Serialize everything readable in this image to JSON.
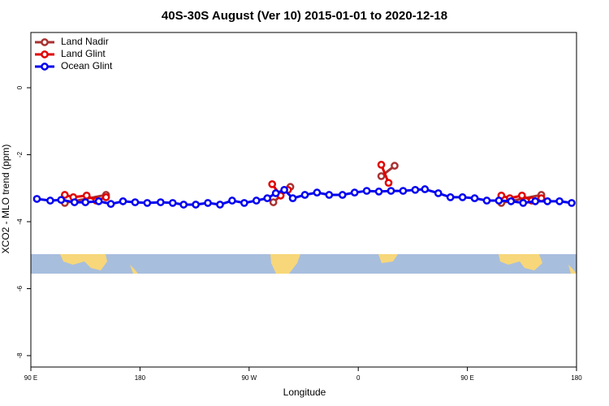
{
  "chart_data": {
    "type": "line",
    "title": "40S-30S August (Ver 10)   2015-01-01 to 2020-12-18",
    "x_label": "Longitude",
    "y_label": "XCO2 - MLO trend (ppm)",
    "xlim": [
      90,
      540
    ],
    "xticks": [
      {
        "value": 90,
        "label": "90 E"
      },
      {
        "value": 180,
        "label": "180"
      },
      {
        "value": 270,
        "label": "90 W"
      },
      {
        "value": 360,
        "label": "0"
      },
      {
        "value": 450,
        "label": "90 E"
      },
      {
        "value": 540,
        "label": "180"
      }
    ],
    "ylim": [
      -8.34,
      1.65
    ],
    "yticks": [
      0,
      -2,
      -4,
      -6,
      -8
    ],
    "legend": "top-left",
    "series": [
      {
        "name": "Land Nadir",
        "color": "#a83232",
        "x": [
          118,
          152,
          null,
          290,
          304,
          null,
          379,
          390,
          null,
          478,
          511
        ],
        "values": [
          -3.44,
          -3.2,
          null,
          -3.42,
          -2.96,
          null,
          -2.64,
          -2.33,
          null,
          -3.44,
          -3.2
        ]
      },
      {
        "name": "Land Glint",
        "color": "#e00000",
        "x": [
          118,
          125,
          136,
          144,
          152,
          null,
          289,
          296,
          302,
          null,
          379,
          385,
          null,
          478,
          485,
          495,
          503,
          511
        ],
        "values": [
          -3.2,
          -3.27,
          -3.22,
          -3.37,
          -3.27,
          null,
          -2.88,
          -3.22,
          -3.05,
          null,
          -2.3,
          -2.84,
          null,
          -3.22,
          -3.3,
          -3.22,
          -3.37,
          -3.3
        ]
      },
      {
        "name": "Ocean Glint",
        "color": "#0000ee",
        "x": [
          95,
          106,
          115,
          126,
          135,
          146,
          156,
          166,
          176,
          186,
          197,
          207,
          216,
          226,
          236,
          246,
          256,
          266,
          276,
          285,
          292,
          299,
          306,
          316,
          326,
          336,
          347,
          357,
          367,
          377,
          387,
          397,
          407,
          415,
          426,
          436,
          446,
          456,
          466,
          476,
          486,
          496,
          506,
          516,
          526,
          536
        ],
        "values": [
          -3.32,
          -3.37,
          -3.35,
          -3.42,
          -3.42,
          -3.39,
          -3.47,
          -3.39,
          -3.42,
          -3.44,
          -3.42,
          -3.44,
          -3.49,
          -3.49,
          -3.44,
          -3.49,
          -3.37,
          -3.44,
          -3.37,
          -3.3,
          -3.15,
          -3.05,
          -3.3,
          -3.2,
          -3.13,
          -3.2,
          -3.2,
          -3.13,
          -3.08,
          -3.1,
          -3.08,
          -3.08,
          -3.05,
          -3.03,
          -3.15,
          -3.27,
          -3.27,
          -3.3,
          -3.37,
          -3.37,
          -3.39,
          -3.44,
          -3.39,
          -3.39,
          -3.39,
          -3.44
        ]
      }
    ]
  }
}
